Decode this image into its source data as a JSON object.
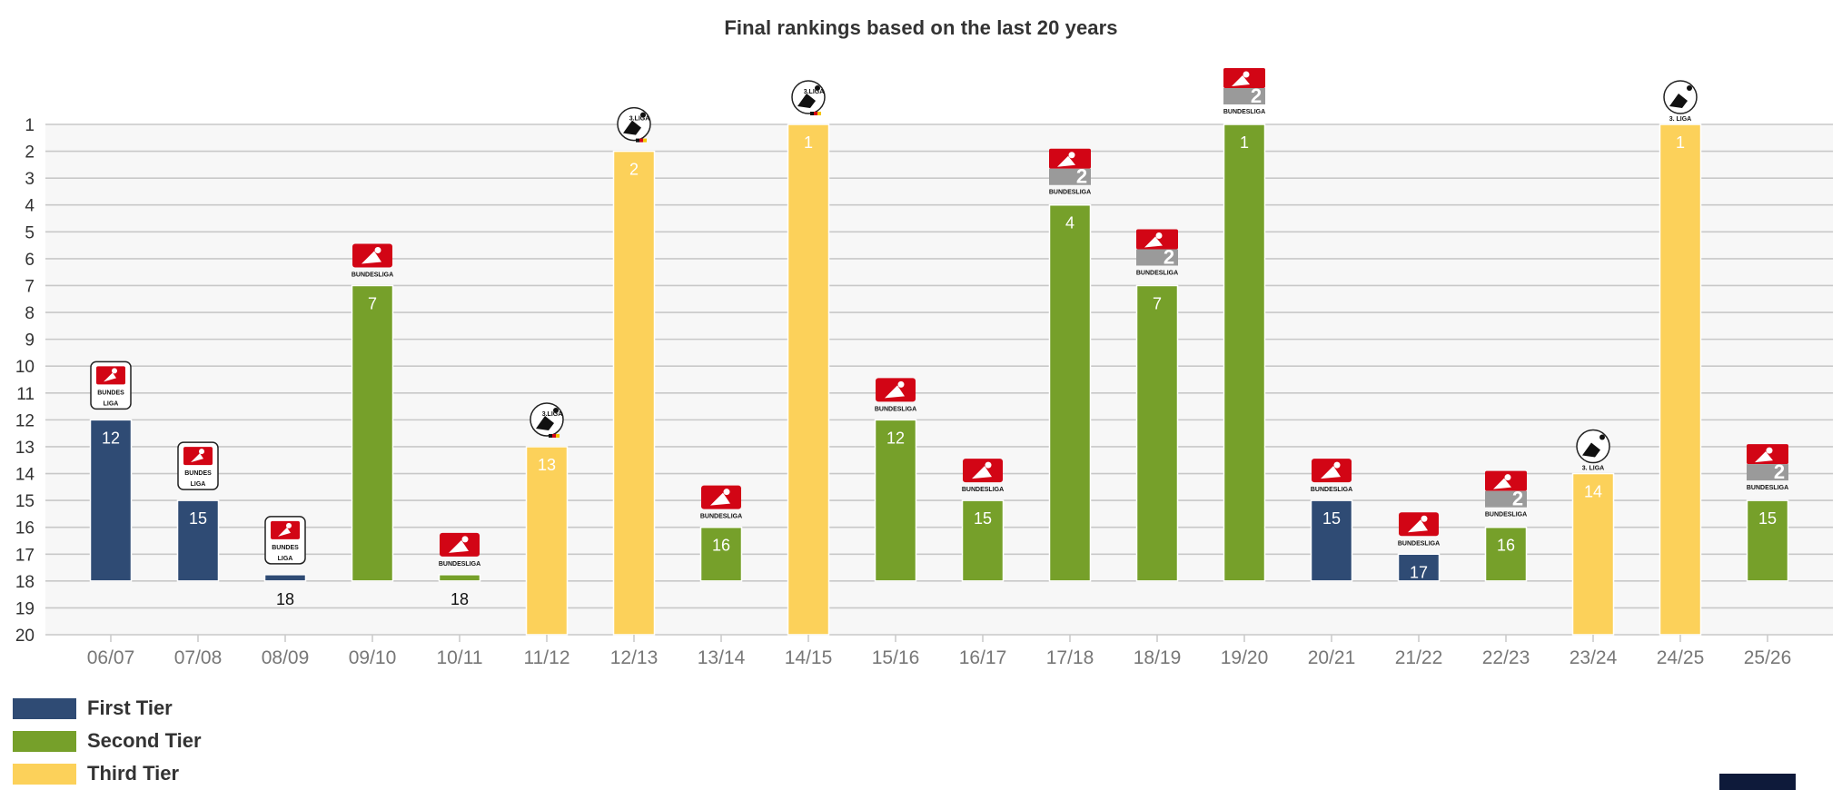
{
  "colors": {
    "first_tier": "#2f4b74",
    "second_tier": "#76a02a",
    "third_tier": "#fcd15a",
    "grid": "#c8c8c8",
    "plot_bg": "#f7f7f7"
  },
  "chart_data": {
    "type": "bar",
    "title": "Final rankings based on the last 20 years",
    "xlabel": "",
    "ylabel": "",
    "y_axis": {
      "min": 1,
      "max": 20,
      "reversed": true,
      "baseline": 20,
      "ticks": [
        "1",
        "2",
        "3",
        "4",
        "5",
        "6",
        "7",
        "8",
        "9",
        "10",
        "11",
        "12",
        "13",
        "14",
        "15",
        "16",
        "17",
        "18",
        "19",
        "20"
      ]
    },
    "categories": [
      "06/07",
      "07/08",
      "08/09",
      "09/10",
      "10/11",
      "11/12",
      "12/13",
      "13/14",
      "14/15",
      "15/16",
      "16/17",
      "17/18",
      "18/19",
      "19/20",
      "20/21",
      "21/22",
      "22/23",
      "23/24",
      "24/25",
      "25/26"
    ],
    "values": [
      12,
      15,
      18,
      7,
      18,
      13,
      2,
      16,
      1,
      12,
      15,
      4,
      7,
      1,
      15,
      17,
      16,
      14,
      1,
      15
    ],
    "tiers": [
      "first",
      "first",
      "first",
      "second",
      "second",
      "third",
      "third",
      "second",
      "third",
      "second",
      "second",
      "second",
      "second",
      "second",
      "first",
      "first",
      "second",
      "third",
      "third",
      "second"
    ],
    "league_logos": [
      "bundesliga",
      "bundesliga",
      "bundesliga",
      "bundesliga-2",
      "bundesliga-2",
      "3-liga",
      "3-liga",
      "bundesliga-2",
      "3-liga",
      "bundesliga-2",
      "bundesliga-2",
      "bundesliga-2-new",
      "bundesliga-2-new",
      "bundesliga-2-new",
      "bundesliga-new",
      "bundesliga-new",
      "bundesliga-2-new",
      "3-liga-new",
      "3-liga-new",
      "bundesliga-2-new"
    ],
    "logo_texts": {
      "bundesliga": [
        "BUNDES",
        "LIGA"
      ],
      "bundesliga-2": [
        "BUNDESLIGA"
      ],
      "3-liga": [
        "3.LIGA"
      ],
      "bundesliga-new": [
        "BUNDESLIGA"
      ],
      "bundesliga-2-new": [
        "BUNDESLIGA"
      ],
      "3-liga-new": [
        "3. LIGA"
      ]
    },
    "legend": [
      {
        "name": "First Tier",
        "tier": "first"
      },
      {
        "name": "Second Tier",
        "tier": "second"
      },
      {
        "name": "Third Tier",
        "tier": "third"
      }
    ]
  }
}
